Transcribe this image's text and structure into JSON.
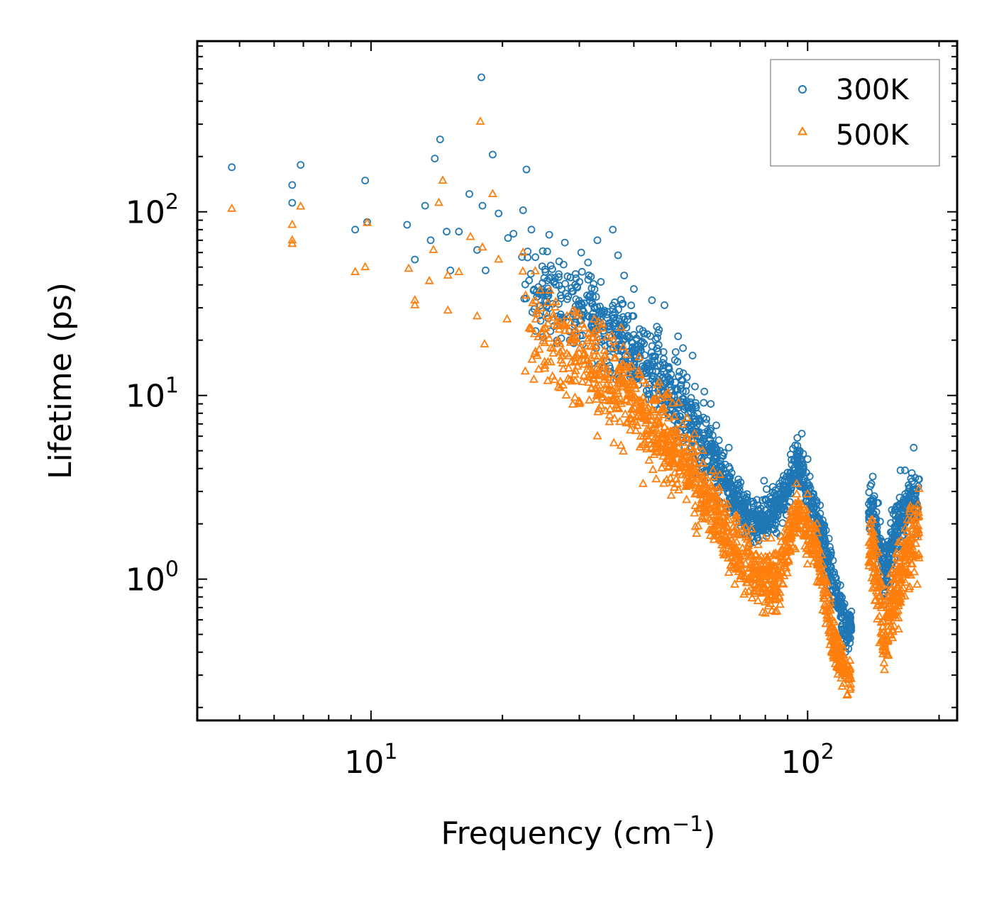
{
  "chart_data": {
    "type": "scatter",
    "xscale": "log",
    "yscale": "log",
    "xlim": [
      4.0,
      220.0
    ],
    "ylim": [
      0.17,
      850.0
    ],
    "xlabel": "Frequency (cm",
    "xlabel_sup": "−1",
    "xlabel_end": ")",
    "ylabel": "Lifetime (ps)",
    "x_ticks": [
      {
        "value": 10,
        "base": "10",
        "exp": "1"
      },
      {
        "value": 100,
        "base": "10",
        "exp": "2"
      }
    ],
    "y_ticks": [
      {
        "value": 1,
        "base": "10",
        "exp": "0"
      },
      {
        "value": 10,
        "base": "10",
        "exp": "1"
      },
      {
        "value": 100,
        "base": "10",
        "exp": "2"
      }
    ],
    "legend": {
      "position": "top-right"
    },
    "colors": {
      "300K": "#1f77b4",
      "500K": "#ff7f0e"
    },
    "series": [
      {
        "name": "300K",
        "marker": "circle",
        "anchor_points": [
          [
            4.8,
            175
          ],
          [
            6.6,
            140
          ],
          [
            6.6,
            112
          ],
          [
            6.9,
            180
          ],
          [
            9.2,
            80
          ],
          [
            9.7,
            148
          ],
          [
            9.8,
            88
          ],
          [
            12.1,
            85
          ],
          [
            12.6,
            55
          ],
          [
            13.3,
            108
          ],
          [
            13.7,
            70
          ],
          [
            14.0,
            195
          ],
          [
            14.4,
            248
          ],
          [
            14.9,
            78
          ],
          [
            15.2,
            48
          ],
          [
            15.9,
            78
          ],
          [
            16.8,
            125
          ],
          [
            17.5,
            62
          ],
          [
            17.9,
            540
          ],
          [
            18.0,
            108
          ],
          [
            18.3,
            48
          ],
          [
            19.0,
            205
          ],
          [
            19.6,
            98
          ],
          [
            20.6,
            72
          ],
          [
            21.2,
            76
          ],
          [
            22.3,
            102
          ],
          [
            22.7,
            170
          ],
          [
            23.3,
            80
          ],
          [
            25.6,
            75
          ],
          [
            27.8,
            68
          ],
          [
            30.3,
            60
          ],
          [
            33.0,
            70
          ],
          [
            35.8,
            80
          ],
          [
            36.8,
            58
          ],
          [
            38.0,
            45
          ],
          [
            40.0,
            38
          ],
          [
            44.0,
            33
          ],
          [
            47.0,
            31
          ],
          [
            50.5,
            21
          ],
          [
            54.5,
            16.5
          ],
          [
            58.0,
            10.5
          ],
          [
            60.0,
            9.0
          ],
          [
            63.0,
            5.0
          ],
          [
            66.0,
            5.2
          ],
          [
            74.0,
            2.3
          ],
          [
            78.0,
            2.1
          ],
          [
            85.0,
            2.6
          ],
          [
            90.0,
            3.8
          ],
          [
            95.0,
            4.8
          ],
          [
            97.0,
            6.2
          ],
          [
            100.0,
            4.5
          ],
          [
            105.0,
            2.6
          ],
          [
            110.0,
            1.3
          ],
          [
            115.0,
            0.75
          ],
          [
            120.0,
            0.5
          ],
          [
            125.0,
            0.45
          ],
          [
            140.0,
            3.3
          ],
          [
            145.0,
            2.6
          ],
          [
            150.0,
            1.3
          ],
          [
            155.0,
            1.8
          ],
          [
            160.0,
            2.5
          ],
          [
            165.0,
            2.2
          ],
          [
            170.0,
            3.0
          ],
          [
            175.0,
            5.2
          ],
          [
            180.0,
            3.5
          ]
        ],
        "trend": [
          [
            22.0,
            42,
            0.35
          ],
          [
            30.0,
            30,
            0.35
          ],
          [
            40.0,
            18,
            0.35
          ],
          [
            50.0,
            10,
            0.35
          ],
          [
            58.0,
            5.5,
            0.3
          ],
          [
            65.0,
            3.3,
            0.25
          ],
          [
            75.0,
            2.0,
            0.2
          ],
          [
            85.0,
            2.3,
            0.2
          ],
          [
            95.0,
            4.2,
            0.2
          ],
          [
            105.0,
            2.2,
            0.2
          ],
          [
            115.0,
            0.9,
            0.2
          ],
          [
            124.0,
            0.5,
            0.15
          ],
          [
            140.0,
            2.6,
            0.25
          ],
          [
            150.0,
            1.0,
            0.25
          ],
          [
            160.0,
            2.0,
            0.25
          ],
          [
            170.0,
            2.5,
            0.25
          ],
          [
            180.0,
            2.8,
            0.3
          ]
        ]
      },
      {
        "name": "500K",
        "marker": "triangle",
        "anchor_points": [
          [
            4.8,
            104
          ],
          [
            6.6,
            85
          ],
          [
            6.6,
            70
          ],
          [
            6.6,
            67
          ],
          [
            6.9,
            107
          ],
          [
            9.2,
            47
          ],
          [
            9.7,
            50
          ],
          [
            9.8,
            87
          ],
          [
            12.2,
            49
          ],
          [
            12.6,
            33
          ],
          [
            12.6,
            31
          ],
          [
            13.6,
            42
          ],
          [
            13.9,
            62
          ],
          [
            14.3,
            112
          ],
          [
            14.6,
            148
          ],
          [
            15.0,
            29
          ],
          [
            15.0,
            45
          ],
          [
            15.9,
            47
          ],
          [
            16.9,
            73
          ],
          [
            17.5,
            27
          ],
          [
            17.8,
            310
          ],
          [
            18.0,
            64
          ],
          [
            18.2,
            19
          ],
          [
            19.0,
            125
          ],
          [
            19.6,
            55
          ],
          [
            20.5,
            26
          ],
          [
            22.3,
            60
          ],
          [
            22.6,
            35
          ],
          [
            25.0,
            14
          ],
          [
            25.4,
            12
          ],
          [
            28.0,
            10
          ],
          [
            30.0,
            9
          ],
          [
            33.0,
            6
          ],
          [
            36.0,
            5.5
          ],
          [
            42.0,
            3.3
          ],
          [
            45.0,
            3.5
          ],
          [
            50.0,
            3.5
          ],
          [
            54.5,
            5.0
          ],
          [
            58.0,
            3.0
          ],
          [
            60.0,
            2.4
          ],
          [
            62.0,
            1.8
          ],
          [
            65.0,
            1.6
          ],
          [
            70.0,
            1.0
          ],
          [
            72.0,
            0.85
          ],
          [
            80.0,
            0.65
          ],
          [
            85.0,
            0.78
          ],
          [
            90.0,
            1.5
          ],
          [
            95.0,
            2.2
          ],
          [
            100.0,
            2.9
          ],
          [
            105.0,
            2.0
          ],
          [
            110.0,
            1.0
          ],
          [
            115.0,
            0.45
          ],
          [
            120.0,
            0.26
          ],
          [
            125.0,
            0.25
          ],
          [
            140.0,
            2.1
          ],
          [
            145.0,
            1.4
          ],
          [
            150.0,
            0.32
          ],
          [
            155.0,
            0.5
          ],
          [
            160.0,
            0.8
          ],
          [
            165.0,
            1.3
          ],
          [
            170.0,
            1.6
          ],
          [
            175.0,
            2.2
          ],
          [
            180.0,
            1.3
          ]
        ],
        "trend": [
          [
            22.0,
            26,
            0.4
          ],
          [
            30.0,
            17,
            0.4
          ],
          [
            40.0,
            9,
            0.4
          ],
          [
            50.0,
            5,
            0.35
          ],
          [
            58.0,
            3.0,
            0.3
          ],
          [
            65.0,
            1.8,
            0.3
          ],
          [
            75.0,
            1.1,
            0.25
          ],
          [
            85.0,
            1.0,
            0.25
          ],
          [
            95.0,
            2.4,
            0.2
          ],
          [
            105.0,
            1.4,
            0.2
          ],
          [
            115.0,
            0.45,
            0.2
          ],
          [
            124.0,
            0.28,
            0.15
          ],
          [
            140.0,
            1.6,
            0.3
          ],
          [
            150.0,
            0.45,
            0.3
          ],
          [
            160.0,
            0.9,
            0.3
          ],
          [
            170.0,
            1.4,
            0.3
          ],
          [
            180.0,
            1.7,
            0.3
          ]
        ]
      }
    ]
  }
}
